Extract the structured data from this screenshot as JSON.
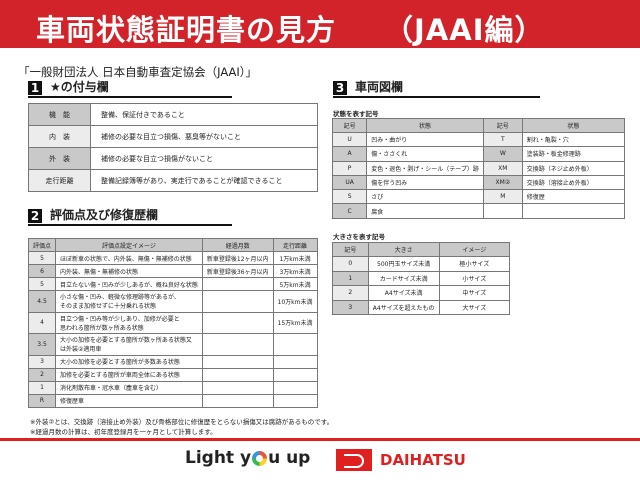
{
  "header": {
    "title": "車両状態証明書の見方",
    "suffix": "（JAAI編）",
    "color": "#d2232a"
  },
  "organization": "「一般財団法人 日本自動車査定協会（JAAI）」",
  "section1": {
    "num": "1",
    "title": "★の付与欄",
    "rows": [
      {
        "k": "機　能",
        "v": "整備、保証付きであること"
      },
      {
        "k": "内　装",
        "v": "補修の必要な目立つ損傷、悪臭等がないこと"
      },
      {
        "k": "外　装",
        "v": "補修の必要な目立つ損傷がないこと"
      },
      {
        "k": "走行距離",
        "v": "整備記録簿等があり、実走行であることが確認できること"
      }
    ]
  },
  "section2": {
    "num": "2",
    "title": "評価点及び修復歴欄",
    "headers": [
      "評価点",
      "評価点設定イメージ",
      "経過月数",
      "走行距離"
    ],
    "rows": [
      [
        "5",
        "ほぼ新車の状態で、内外装、無傷・無補修の状態",
        "新車登録後12ヶ月以内",
        "1万km未満"
      ],
      [
        "6",
        "内外装、無傷・無補修の状態",
        "新車登録後36ヶ月以内",
        "3万km未満"
      ],
      [
        "5",
        "目立たない傷・凹みが少しあるが、概ね良好な状態",
        "",
        "5万km未満"
      ],
      [
        "4.5",
        "小さな傷・凹み、軽微な修理跡等があるが、\nそのまま加修せずに十分乗れる状態",
        "",
        "10万km未満"
      ],
      [
        "4",
        "目立つ傷・凹み等が少しあり、加修が必要と\n思われる箇所が数ヶ所ある状態",
        "",
        "15万km未満"
      ],
      [
        "3.5",
        "大小の加修を必要とする箇所が数ヶ所ある状態又\nは外装②適用車",
        "",
        ""
      ],
      [
        "3",
        "大小の加修を必要とする箇所が多数ある状態",
        "",
        ""
      ],
      [
        "2",
        "加修を必要とする箇所が車両全体にある状態",
        "",
        ""
      ],
      [
        "1",
        "消化剤散布車・冠水車（塵車を含む）",
        "",
        ""
      ],
      [
        "R",
        "修復歴車",
        "",
        ""
      ]
    ]
  },
  "notes": [
    "※外装②とは、交換跡（溶接止め外装）及び骨格部位に修復歴をとらない損傷又は腐跡があるものです。",
    "※経過月数の計算は、初年度登録月を一ヶ月として計算します。"
  ],
  "section3": {
    "num": "3",
    "title": "車両図欄",
    "state_label": "状態を表す記号",
    "state_headers": [
      "記号",
      "状態",
      "記号",
      "状態"
    ],
    "state_rows": [
      [
        "U",
        "凹み・曲がり",
        "T",
        "割れ・亀裂・穴"
      ],
      [
        "A",
        "傷・ささくれ",
        "W",
        "塗装跡・板金修理跡"
      ],
      [
        "P",
        "変色・退色・剥げ・シール（テープ）跡",
        "XM",
        "交換跡（ネジ止め外板）"
      ],
      [
        "UA",
        "傷を伴う凹み",
        "XM②",
        "交換跡（溶接止め外板）"
      ],
      [
        "S",
        "さび",
        "M",
        "修復歴"
      ],
      [
        "C",
        "腐食",
        "",
        ""
      ]
    ],
    "size_label": "大きさを表す記号",
    "size_headers": [
      "記号",
      "大きさ",
      "イメージ"
    ],
    "size_rows": [
      [
        "0",
        "500円玉サイズ未満",
        "極小サイズ"
      ],
      [
        "1",
        "カードサイズ未満",
        "小サイズ"
      ],
      [
        "2",
        "A4サイズ未満",
        "中サイズ"
      ],
      [
        "3",
        "A4サイズを超えたもの",
        "大サイズ"
      ]
    ]
  },
  "footer": {
    "slogan_a": "Light y",
    "slogan_b": "u up",
    "brand": "DAIHATSU",
    "brand_color": "#e0201f"
  }
}
